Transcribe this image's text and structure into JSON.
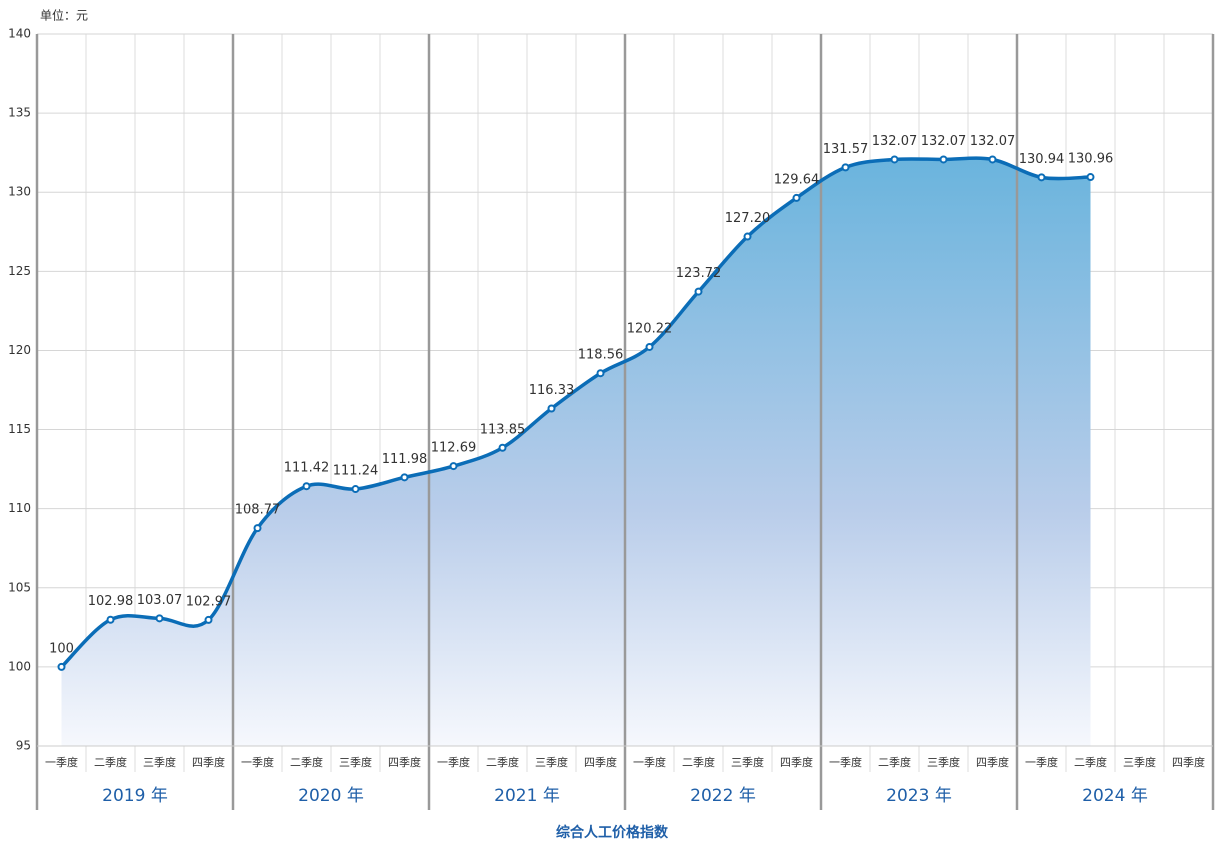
{
  "chart_data": {
    "type": "line",
    "unit_label": "单位：元",
    "x_axis_title": "综合人工价格指数",
    "categories": [
      "一季度",
      "二季度",
      "三季度",
      "四季度",
      "一季度",
      "二季度",
      "三季度",
      "四季度",
      "一季度",
      "二季度",
      "三季度",
      "四季度",
      "一季度",
      "二季度",
      "三季度",
      "四季度",
      "一季度",
      "二季度",
      "三季度",
      "四季度",
      "一季度",
      "二季度",
      "三季度",
      "四季度"
    ],
    "groups": [
      "2019 年",
      "2020 年",
      "2021 年",
      "2022 年",
      "2023 年",
      "2024 年"
    ],
    "values": [
      100,
      102.98,
      103.07,
      102.97,
      108.77,
      111.42,
      111.24,
      111.98,
      112.69,
      113.85,
      116.33,
      118.56,
      120.22,
      123.72,
      127.2,
      129.64,
      131.57,
      132.07,
      132.07,
      132.07,
      130.94,
      130.96,
      null,
      null
    ],
    "value_labels": [
      "100",
      "102.98",
      "103.07",
      "102.97",
      "108.77",
      "111.42",
      "111.24",
      "111.98",
      "112.69",
      "113.85",
      "116.33",
      "118.56",
      "120.22",
      "123.72",
      "127.20",
      "129.64",
      "131.57",
      "132.07",
      "132.07",
      "132.07",
      "130.94",
      "130.96",
      null,
      null
    ],
    "color": "#0b6db7",
    "ylim": [
      95,
      140
    ],
    "yticks": [
      95,
      100,
      105,
      110,
      115,
      120,
      125,
      130,
      135,
      140
    ],
    "grid": true
  }
}
